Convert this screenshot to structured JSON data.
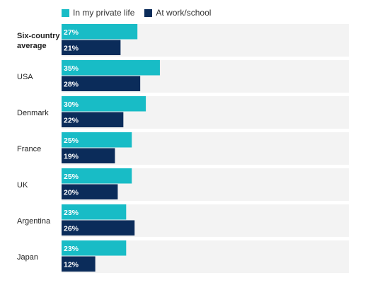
{
  "chart_data": {
    "type": "bar",
    "orientation": "horizontal",
    "categories": [
      "Six-country average",
      "USA",
      "Denmark",
      "France",
      "UK",
      "Argentina",
      "Japan"
    ],
    "category_lines": [
      [
        "Six-country",
        "average"
      ],
      [
        "USA"
      ],
      [
        "Denmark"
      ],
      [
        "France"
      ],
      [
        "UK"
      ],
      [
        "Argentina"
      ],
      [
        "Japan"
      ]
    ],
    "highlighted_category": "Six-country average",
    "series": [
      {
        "name": "In my private life",
        "color": "#18BCC6",
        "values": [
          27,
          35,
          30,
          25,
          25,
          23,
          23
        ],
        "labels": [
          "27%",
          "35%",
          "30%",
          "25%",
          "25%",
          "23%",
          "23%"
        ]
      },
      {
        "name": "At work/school",
        "color": "#0B2C5A",
        "values": [
          21,
          28,
          22,
          19,
          20,
          26,
          12
        ],
        "labels": [
          "21%",
          "28%",
          "22%",
          "19%",
          "20%",
          "26%",
          "12%"
        ]
      }
    ],
    "xlim": [
      0,
      100
    ],
    "legend_position": "top-left",
    "track_color": "#F3F3F3"
  }
}
